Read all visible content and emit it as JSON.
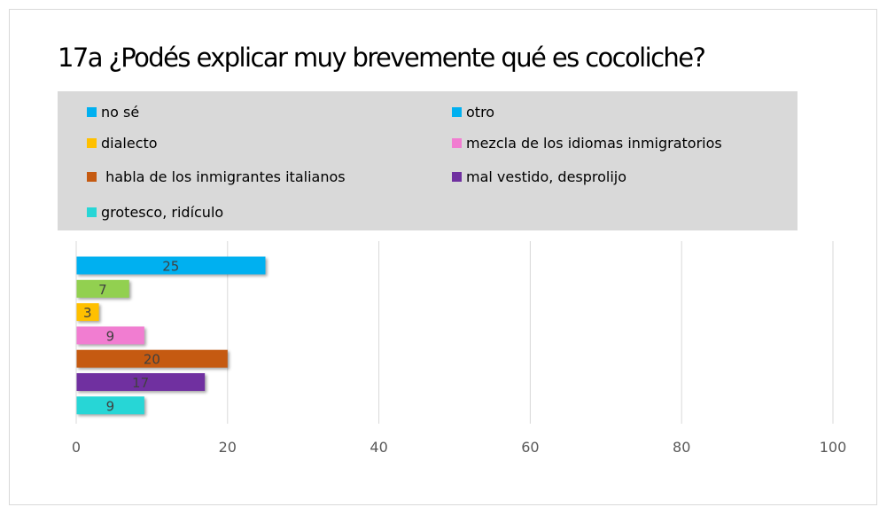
{
  "chart_data": {
    "type": "bar",
    "orientation": "horizontal",
    "title": "17a ¿Podés explicar muy brevemente qué es cocoliche?",
    "xlabel": "",
    "ylabel": "",
    "xlim": [
      0,
      100
    ],
    "x_ticks": [
      "0",
      "20",
      "40",
      "60",
      "80",
      "100"
    ],
    "grid": "vertical",
    "legend_position": "top",
    "categories": [
      "no sé",
      "otro",
      "dialecto",
      "mezcla de los idiomas inmigratorios",
      " habla de los inmigrantes italianos",
      "mal vestido, desprolijo",
      "grotesco, ridículo"
    ],
    "values": [
      25,
      7,
      3,
      9,
      20,
      17,
      9
    ],
    "colors": [
      "#00b0f0",
      "#92d050",
      "#ffc000",
      "#f17dd1",
      "#c55a11",
      "#7030a0",
      "#27d6d6"
    ],
    "legend_swatches": [
      "#00b0f0",
      "#00b0f0",
      "#ffc000",
      "#f17dd1",
      "#c55a11",
      "#7030a0",
      "#27d6d6"
    ]
  }
}
